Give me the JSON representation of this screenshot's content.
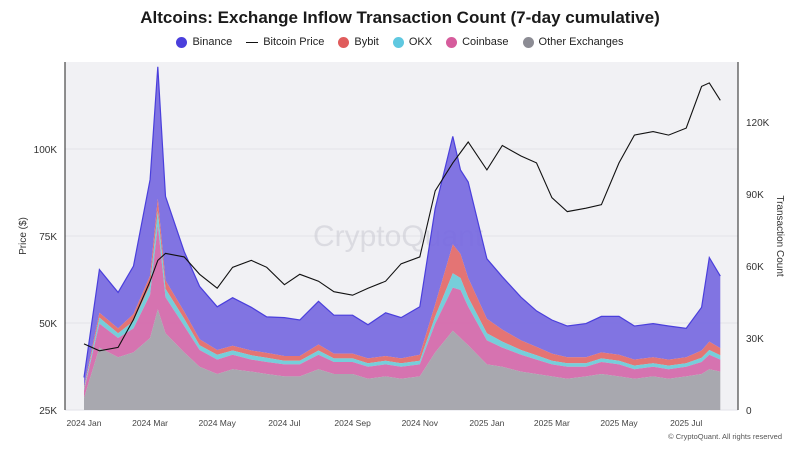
{
  "chart_data": {
    "type": "area",
    "title": "Altcoins: Exchange Inflow Transaction Count (7-day cumulative)",
    "ylabel_left": "Price ($)",
    "ylabel_right": "Transaction Count",
    "watermark": "CryptoQuant",
    "copyright": "© CryptoQuant. All rights reserved",
    "left_axis": {
      "ticks": [
        "25K",
        "50K",
        "75K",
        "100K"
      ],
      "range": [
        25000,
        125000
      ]
    },
    "right_axis": {
      "ticks": [
        "0",
        "30K",
        "60K",
        "90K",
        "120K"
      ],
      "range": [
        0,
        145000
      ]
    },
    "x_ticks": [
      "2024 Jan",
      "2024 Mar",
      "2024 May",
      "2024 Jul",
      "2024 Sep",
      "2024 Nov",
      "2025 Jan",
      "2025 Mar",
      "2025 May",
      "2025 Jul"
    ],
    "x": [
      "2024-01-01",
      "2024-01-15",
      "2024-02-01",
      "2024-02-15",
      "2024-03-01",
      "2024-03-08",
      "2024-03-15",
      "2024-04-01",
      "2024-04-15",
      "2024-05-01",
      "2024-05-15",
      "2024-06-01",
      "2024-06-15",
      "2024-07-01",
      "2024-07-15",
      "2024-08-01",
      "2024-08-15",
      "2024-09-01",
      "2024-09-15",
      "2024-10-01",
      "2024-10-15",
      "2024-11-01",
      "2024-11-15",
      "2024-12-01",
      "2024-12-08",
      "2024-12-15",
      "2025-01-01",
      "2025-01-15",
      "2025-02-01",
      "2025-02-15",
      "2025-03-01",
      "2025-03-15",
      "2025-04-01",
      "2025-04-15",
      "2025-05-01",
      "2025-05-15",
      "2025-06-01",
      "2025-06-15",
      "2025-07-01",
      "2025-07-15",
      "2025-07-22",
      "2025-08-01"
    ],
    "series": [
      {
        "name": "Other Exchanges",
        "axis": "right",
        "color": "#a3a3ab",
        "values": [
          5000,
          26000,
          22000,
          24000,
          30000,
          42000,
          32000,
          24000,
          18000,
          15000,
          17000,
          16000,
          15000,
          14000,
          14000,
          17000,
          15000,
          15000,
          13000,
          14000,
          13000,
          14000,
          24000,
          33000,
          30000,
          27000,
          19000,
          18000,
          16000,
          15000,
          14000,
          13000,
          14000,
          15000,
          14000,
          13000,
          14000,
          13000,
          14000,
          15000,
          17000,
          16000
        ]
      },
      {
        "name": "Coinbase",
        "axis": "right",
        "color": "#d46bac",
        "values": [
          3000,
          10000,
          8000,
          10000,
          18000,
          35000,
          15000,
          11000,
          7000,
          6000,
          6000,
          5000,
          5000,
          5000,
          5000,
          6000,
          5000,
          5000,
          5000,
          5000,
          5000,
          5000,
          12000,
          18000,
          20000,
          16000,
          10000,
          8000,
          7000,
          6000,
          5000,
          5000,
          4000,
          5000,
          5000,
          4000,
          4000,
          4000,
          4000,
          5000,
          6000,
          5000
        ]
      },
      {
        "name": "OKX",
        "axis": "right",
        "color": "#6fcbd8",
        "values": [
          800,
          2500,
          2000,
          3000,
          4000,
          6000,
          3500,
          3000,
          2000,
          2000,
          1800,
          1800,
          1800,
          1500,
          1500,
          1800,
          1500,
          1500,
          1500,
          1500,
          1500,
          1500,
          3000,
          6000,
          5000,
          4000,
          3000,
          2500,
          2000,
          1800,
          1500,
          1500,
          1500,
          1500,
          1500,
          1500,
          1500,
          1500,
          1500,
          1800,
          2000,
          1800
        ]
      },
      {
        "name": "Bybit",
        "axis": "right",
        "color": "#e36d6d",
        "values": [
          800,
          2000,
          2000,
          3000,
          4000,
          5000,
          3500,
          3000,
          2500,
          2000,
          2000,
          2000,
          2000,
          2000,
          2000,
          2500,
          2000,
          2000,
          2000,
          2000,
          2000,
          2500,
          5000,
          12000,
          10000,
          8000,
          6000,
          5000,
          4000,
          3500,
          3000,
          2500,
          2500,
          2500,
          2500,
          2500,
          2500,
          2500,
          2500,
          3000,
          3500,
          3000
        ]
      },
      {
        "name": "Binance",
        "axis": "right",
        "color": "#7a6de0",
        "values": [
          4000,
          18000,
          15000,
          20000,
          40000,
          55000,
          35000,
          25000,
          22000,
          18000,
          20000,
          18000,
          15000,
          16000,
          15000,
          18000,
          16000,
          16000,
          14000,
          18000,
          17000,
          20000,
          40000,
          45000,
          35000,
          40000,
          25000,
          22000,
          18000,
          15000,
          14000,
          13000,
          14000,
          15000,
          16000,
          14000,
          14000,
          14000,
          12000,
          18000,
          35000,
          30000
        ]
      },
      {
        "name": "Bitcoin Price",
        "axis": "left",
        "color": "#111111",
        "values": [
          44000,
          42000,
          43000,
          51000,
          62000,
          68000,
          70000,
          69000,
          64000,
          60000,
          66000,
          68000,
          66000,
          61000,
          64000,
          62000,
          59000,
          58000,
          60000,
          62000,
          67000,
          69000,
          88000,
          96000,
          99000,
          102000,
          94000,
          101000,
          98000,
          96000,
          86000,
          82000,
          83000,
          84000,
          96000,
          104000,
          105000,
          104000,
          106000,
          118000,
          119000,
          114000
        ]
      }
    ]
  },
  "legend": [
    {
      "label": "Binance",
      "kind": "dot",
      "color": "#4a3fdc"
    },
    {
      "label": "Bitcoin Price",
      "kind": "line",
      "color": "#111111"
    },
    {
      "label": "Bybit",
      "kind": "dot",
      "color": "#e05c5c"
    },
    {
      "label": "OKX",
      "kind": "dot",
      "color": "#5fc8e0"
    },
    {
      "label": "Coinbase",
      "kind": "dot",
      "color": "#d65c9c"
    },
    {
      "label": "Other Exchanges",
      "kind": "dot",
      "color": "#8c8c94"
    }
  ]
}
